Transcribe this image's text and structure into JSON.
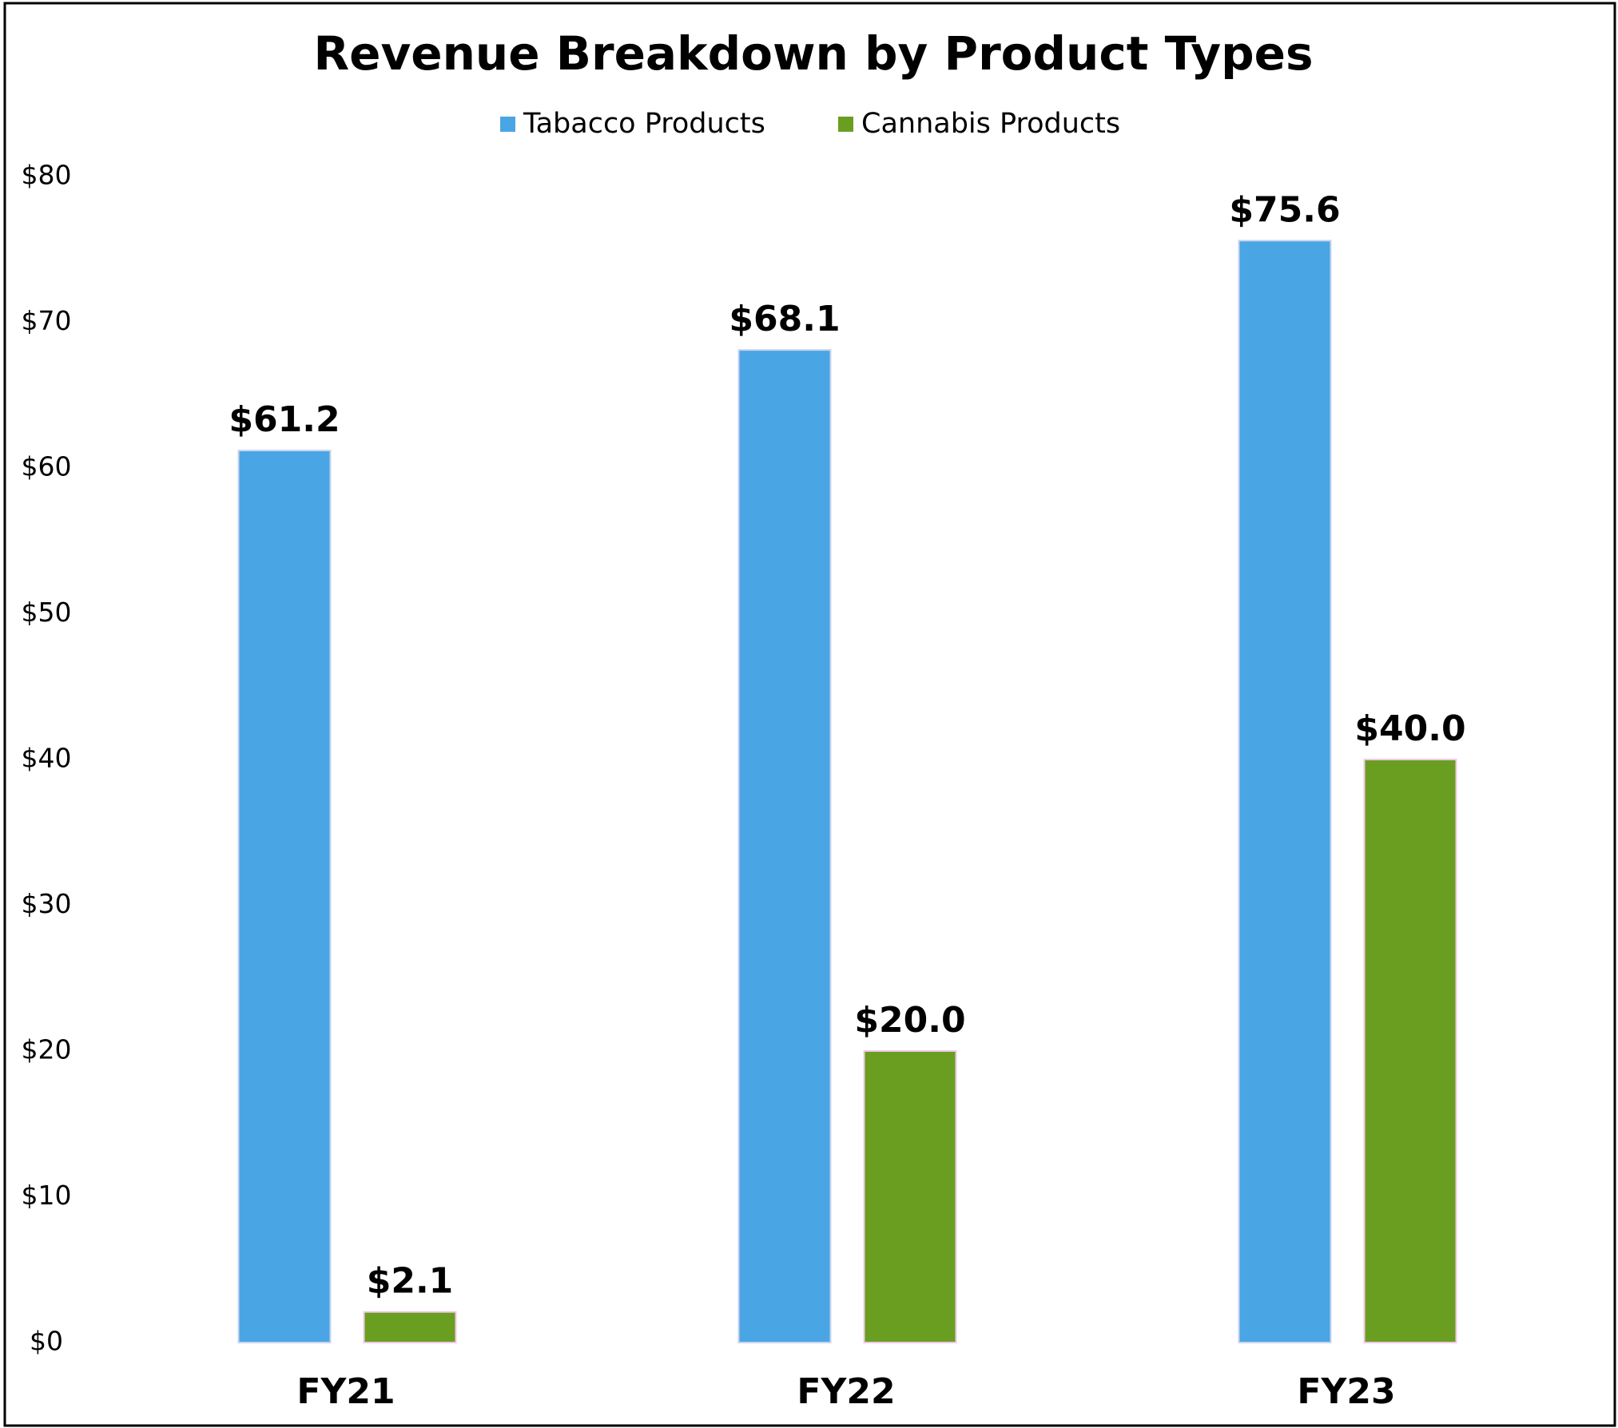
{
  "chart_data": {
    "type": "bar",
    "title": "Revenue Breakdown by Product Types",
    "categories": [
      "FY21",
      "FY22",
      "FY23"
    ],
    "series": [
      {
        "name": "Tabacco Products",
        "color": "#4aa5e4",
        "values": [
          61.2,
          68.1,
          75.6
        ],
        "value_labels": [
          "$61.2",
          "$68.1",
          "$75.6"
        ]
      },
      {
        "name": "Cannabis Products",
        "color": "#6a9e21",
        "values": [
          2.1,
          20.0,
          40.0
        ],
        "value_labels": [
          "$2.1",
          "$20.0",
          "$40.0"
        ]
      }
    ],
    "ylim": [
      0,
      80
    ],
    "yticks": [
      {
        "value": 0,
        "label": "$0"
      },
      {
        "value": 10,
        "label": "$10"
      },
      {
        "value": 20,
        "label": "$20"
      },
      {
        "value": 30,
        "label": "$30"
      },
      {
        "value": 40,
        "label": "$40"
      },
      {
        "value": 50,
        "label": "$50"
      },
      {
        "value": 60,
        "label": "$60"
      },
      {
        "value": 70,
        "label": "$70"
      },
      {
        "value": 80,
        "label": "$80"
      }
    ],
    "grid": false,
    "legend": "top"
  }
}
